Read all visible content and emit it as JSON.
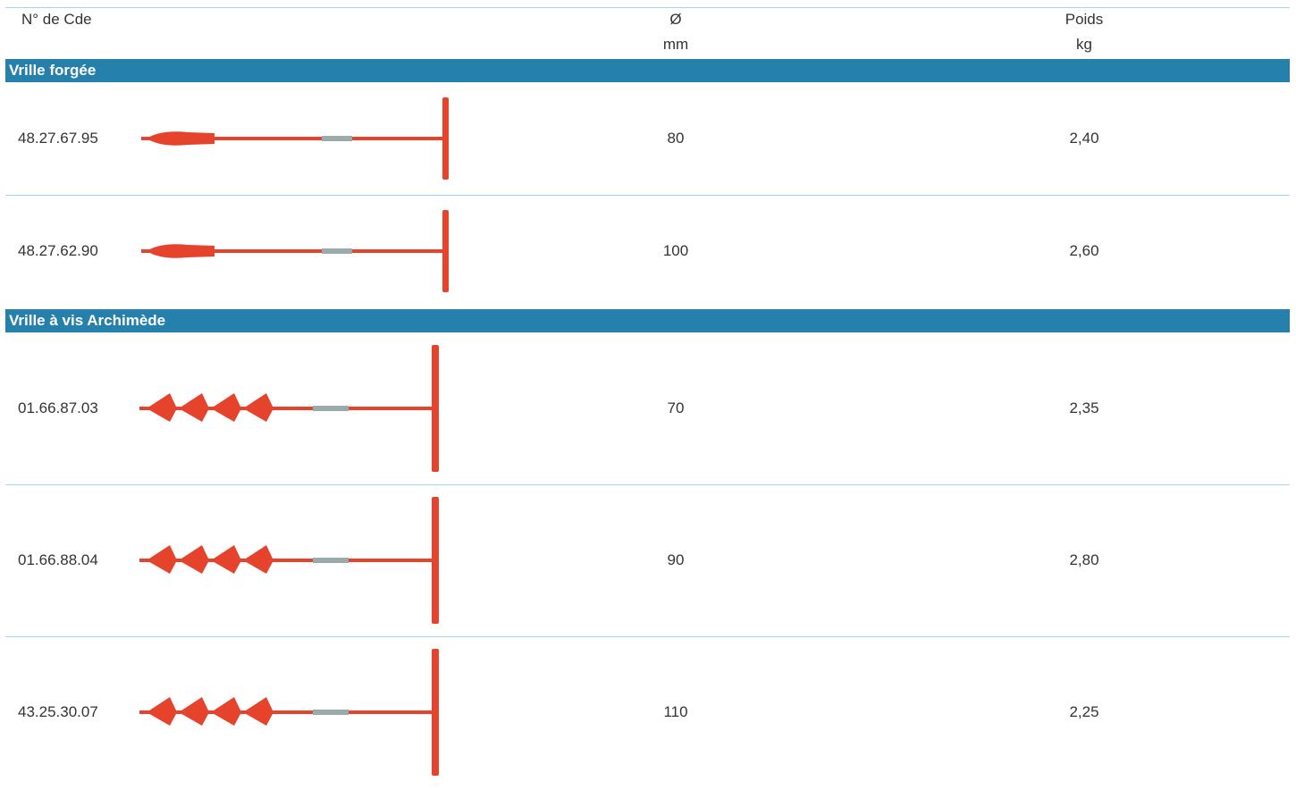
{
  "table": {
    "header": {
      "code": "N° de Cde",
      "diameter": "Ø",
      "diameter_unit": "mm",
      "weight": "Poids",
      "weight_unit": "kg"
    },
    "sections": [
      {
        "title": "Vrille forgée",
        "rows": [
          [
            "48.27.67.95",
            "80",
            "2,40"
          ],
          [
            "48.27.62.90",
            "100",
            "2,60"
          ]
        ]
      },
      {
        "title": "Vrille à vis Archimède",
        "rows": [
          [
            "01.66.87.03",
            "70",
            "2,35"
          ],
          [
            "01.66.88.04",
            "90",
            "2,80"
          ],
          [
            "43.25.30.07",
            "110",
            "2,25"
          ]
        ]
      }
    ]
  }
}
